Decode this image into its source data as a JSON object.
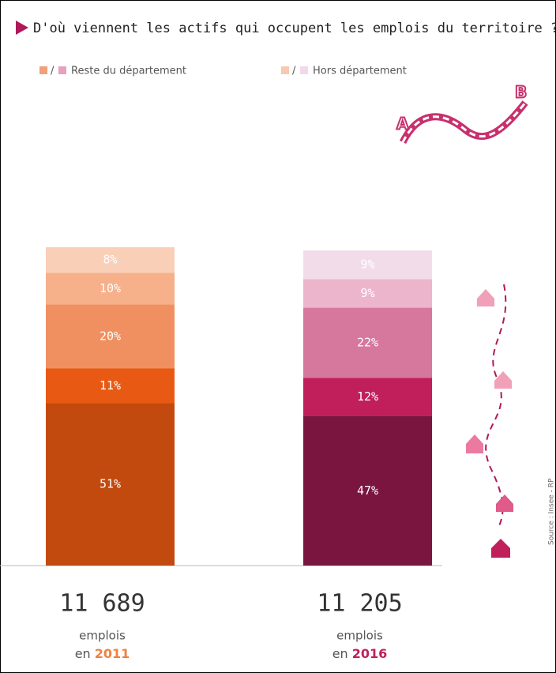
{
  "chart_data": {
    "type": "stacked-bar",
    "title": "D'où viennent les actifs qui occupent les emplois du territoire ?",
    "legend": [
      {
        "label": "Reste du département",
        "colors": [
          "#f0a07a",
          "#e8a0c0"
        ]
      },
      {
        "label": "Hors département",
        "colors": [
          "#f8c8b0",
          "#f3d8ea"
        ]
      }
    ],
    "bars": [
      {
        "total": "11 689",
        "unit": "emplois",
        "prefix": "en",
        "year": "2011",
        "year_color": "#f08040",
        "values": [
          51,
          11,
          20,
          10,
          8
        ],
        "value_labels": [
          "51%",
          "11%",
          "20%",
          "10%",
          "8%"
        ],
        "colors": [
          "#c24a0e",
          "#e85a14",
          "#f09060",
          "#f6b08a",
          "#f9cfb8"
        ]
      },
      {
        "total": "11 205",
        "unit": "emplois",
        "prefix": "en",
        "year": "2016",
        "year_color": "#c01f5c",
        "values": [
          47,
          12,
          22,
          9,
          9
        ],
        "value_labels": [
          "47%",
          "12%",
          "22%",
          "9%",
          "9%"
        ],
        "colors": [
          "#7a1540",
          "#c01f5c",
          "#d6789e",
          "#edb5cb",
          "#f3dcea"
        ]
      }
    ],
    "source": "Source : Insee - RP"
  }
}
